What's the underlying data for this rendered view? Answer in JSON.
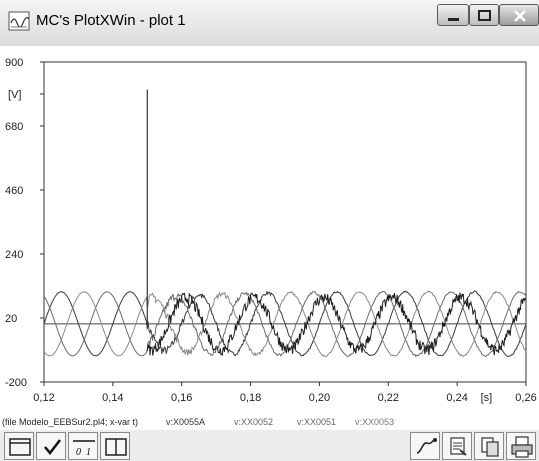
{
  "window": {
    "title": "MC's PlotXWin - plot 1"
  },
  "chart_data": {
    "type": "line",
    "x_ticks": [
      "0,12",
      "0,14",
      "0,16",
      "0,18",
      "0,20",
      "0,22",
      "0,24",
      "0,26"
    ],
    "x_unit": "[s]",
    "y_ticks": [
      "900",
      "680",
      "460",
      "240",
      "20",
      "-200"
    ],
    "y_unit": "[V]",
    "xlim": [
      0.12,
      0.26
    ],
    "ylim": [
      -200,
      900
    ],
    "series": [
      {
        "name": "v:X0055A",
        "color": "#222222"
      },
      {
        "name": "v:XX0052",
        "color": "#666666"
      },
      {
        "name": "v:XX0051",
        "color": "#777777"
      },
      {
        "name": "v:XX0053",
        "color": "#888888"
      }
    ],
    "spike": {
      "x": 0.15,
      "y": 805
    }
  },
  "status": {
    "file_info": "(file Modelo_EEBSur2.pl4; x-var t)"
  },
  "toolbar": {
    "icons": [
      "frame-icon",
      "check-icon",
      "range-icon",
      "split-icon",
      "curve-icon",
      "copy-graph-icon",
      "copy-icon",
      "print-icon"
    ]
  }
}
